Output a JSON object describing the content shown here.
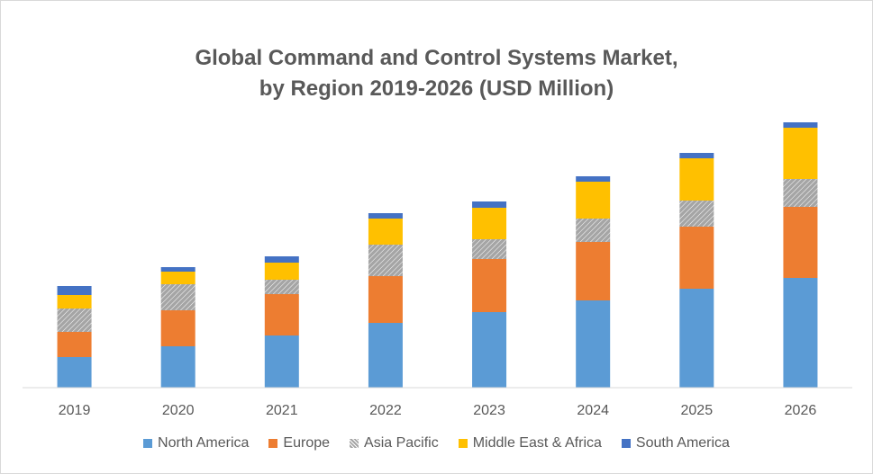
{
  "chart_data": {
    "type": "bar",
    "stacked": true,
    "title_line1": "Global Command and Control Systems Market,",
    "title_line2": "by Region 2019-2026 (USD Million)",
    "categories": [
      "2019",
      "2020",
      "2021",
      "2022",
      "2023",
      "2024",
      "2025",
      "2026"
    ],
    "series": [
      {
        "name": "North America",
        "color": "#5b9bd5",
        "values": [
          34,
          46,
          58,
          72,
          84,
          97,
          110,
          122
        ]
      },
      {
        "name": "Europe",
        "color": "#ed7d31",
        "values": [
          28,
          40,
          46,
          52,
          59,
          65,
          69,
          79
        ]
      },
      {
        "name": "Asia Pacific",
        "color": "#a5a5a5",
        "pattern": "hatched",
        "values": [
          26,
          29,
          16,
          35,
          22,
          26,
          29,
          31
        ]
      },
      {
        "name": "Middle East & Africa",
        "color": "#ffc000",
        "values": [
          15,
          14,
          19,
          29,
          35,
          41,
          47,
          57
        ]
      },
      {
        "name": "South America",
        "color": "#4472c4",
        "values": [
          10,
          5,
          7,
          6,
          7,
          6,
          6,
          6
        ]
      }
    ],
    "ylim": [
      0,
      300
    ],
    "y_axis_shown": false,
    "grid": false,
    "legend_position": "bottom"
  }
}
